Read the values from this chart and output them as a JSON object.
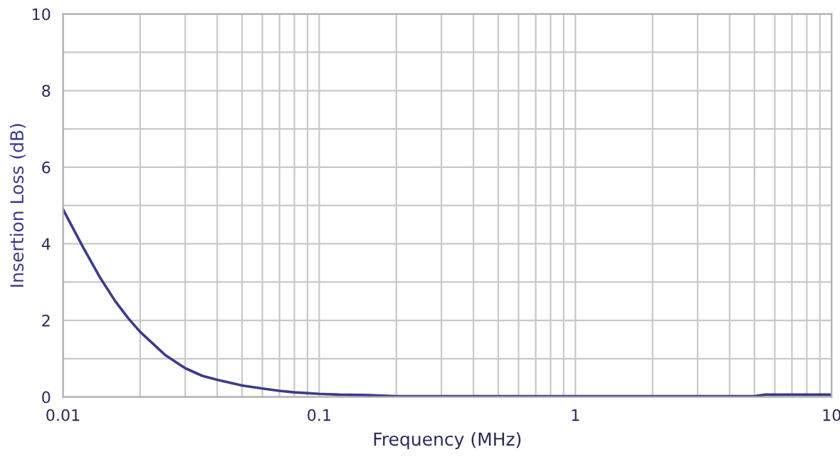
{
  "chart_data": {
    "type": "line",
    "xlabel": "Frequency (MHz)",
    "ylabel": "Insertion Loss (dB)",
    "log": "x",
    "grid": true,
    "marker": "none",
    "line_style": "solid",
    "xlim": [
      0.01,
      10
    ],
    "ylim": [
      0,
      10
    ],
    "xticks": [
      0.01,
      {
        "value": 0.02,
        "label": null
      },
      {
        "value": 0.03,
        "label": null
      },
      {
        "value": 0.04,
        "label": null
      },
      {
        "value": 0.05,
        "label": null
      },
      {
        "value": 0.06,
        "label": null
      },
      {
        "value": 0.07,
        "label": null
      },
      {
        "value": 0.08,
        "label": null
      },
      {
        "value": 0.09,
        "label": null
      },
      0.1,
      {
        "value": 0.2,
        "label": null
      },
      {
        "value": 0.3,
        "label": null
      },
      {
        "value": 0.4,
        "label": null
      },
      {
        "value": 0.5,
        "label": null
      },
      {
        "value": 0.6,
        "label": null
      },
      {
        "value": 0.7,
        "label": null
      },
      {
        "value": 0.8,
        "label": null
      },
      {
        "value": 0.9,
        "label": null
      },
      1,
      {
        "value": 2,
        "label": null
      },
      {
        "value": 3,
        "label": null
      },
      {
        "value": 4,
        "label": null
      },
      {
        "value": 5,
        "label": null
      },
      {
        "value": 6,
        "label": null
      },
      {
        "value": 7,
        "label": null
      },
      {
        "value": 8,
        "label": null
      },
      {
        "value": 9,
        "label": null
      },
      10
    ],
    "yticks": [
      0,
      {
        "value": 1,
        "label": null
      },
      2,
      {
        "value": 3,
        "label": null
      },
      4,
      {
        "value": 5,
        "label": null
      },
      6,
      {
        "value": 7,
        "label": null
      },
      8,
      {
        "value": 9,
        "label": null
      },
      10
    ],
    "series": [
      {
        "color": "#3c3a8c",
        "x": [
          0.01,
          0.012,
          0.014,
          0.016,
          0.018,
          0.02,
          0.025,
          0.03,
          0.035,
          0.04,
          0.05,
          0.06,
          0.07,
          0.08,
          0.1,
          0.12,
          0.15,
          0.2,
          0.5,
          1,
          2,
          5,
          5.5,
          10
        ],
        "values": [
          4.9,
          3.9,
          3.1,
          2.5,
          2.05,
          1.7,
          1.1,
          0.75,
          0.55,
          0.45,
          0.3,
          0.22,
          0.16,
          0.12,
          0.08,
          0.06,
          0.05,
          0.02,
          0.02,
          0.02,
          0.02,
          0.02,
          0.06,
          0.06
        ]
      }
    ]
  }
}
